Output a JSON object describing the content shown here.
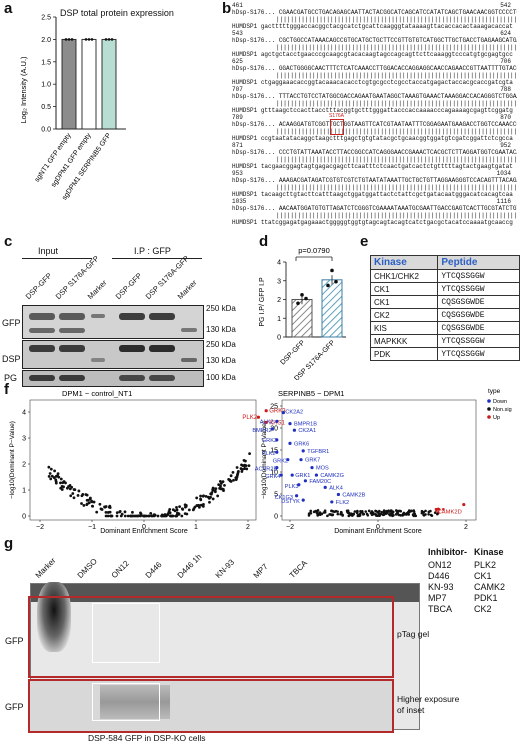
{
  "panels": {
    "a": "a",
    "b": "b",
    "c": "c",
    "d": "d",
    "e": "e",
    "f": "f",
    "g": "g"
  },
  "panel_a": {
    "title": "DSP total protein expression",
    "ylabel": "Log₂ Intensity (A.U.)",
    "yticks": [
      "0.0",
      "0.5",
      "1.0",
      "1.5",
      "2.0",
      "2.5"
    ],
    "categories": [
      "sgNT1 GFP empty",
      "sgDPM1 GFP empty",
      "sgDPM1 SERPINB5 GFP"
    ],
    "colors": [
      "#8c8c8c",
      "#ffffff",
      "#b8ddd2"
    ]
  },
  "panel_b": {
    "blocks": [
      {
        "start": "461",
        "end": "542",
        "q": "hDsp-S176...",
        "s": "HUMDSP1"
      },
      {
        "start": "543",
        "end": "624",
        "q": "hDsp-S176...",
        "s": "HUMDSP1"
      },
      {
        "start": "625",
        "end": "706",
        "q": "hDsp-S176...",
        "s": "HUMDSP1"
      },
      {
        "start": "707",
        "end": "788",
        "q": "hDsp-S176...",
        "s": "HUMDSP1"
      },
      {
        "start": "789",
        "end": "870",
        "q": "hDsp-S176...",
        "s": "HUMDSP1"
      },
      {
        "start": "871",
        "end": "952",
        "q": "hDsp-S176...",
        "s": "HUMDSP1"
      },
      {
        "start": "953",
        "end": "1034",
        "q": "hDsp-S176...",
        "s": "HUMDSP1"
      },
      {
        "start": "1035",
        "end": "1116",
        "q": "hDsp-S176...",
        "s": "HUMDSP1"
      }
    ],
    "mutation_label": "S176A"
  },
  "panel_c": {
    "header_input": "Input",
    "header_ip": "I.P : GFP",
    "lanes": [
      "DSP-GFP",
      "DSP S176A-GFP",
      "Marker",
      "DSP-GFP",
      "DSP S176A-GFP",
      "Marker"
    ],
    "rows": [
      "GFP",
      "DSP",
      "PG"
    ],
    "kda": [
      "250 kDa",
      "130 kDa",
      "250 kDa",
      "130 kDa",
      "100 kDa"
    ]
  },
  "panel_d": {
    "ylabel": "PG I.P/ GFP I.P",
    "pvalue": "p=0.0790",
    "yticks": [
      "0",
      "1",
      "2",
      "3",
      "4"
    ],
    "categories": [
      "DSP-GFP",
      "DSP S176A-GFP"
    ]
  },
  "panel_e": {
    "headers": [
      "Kinase",
      "Peptide"
    ],
    "rows": [
      [
        "CHK1/CHK2",
        "YTCQSSGGW"
      ],
      [
        "CK1",
        "YTCQSSGGW"
      ],
      [
        "CK1",
        "CQSGSGWDE"
      ],
      [
        "CK2",
        "CQSGSGWDE"
      ],
      [
        "KIS",
        "CQSGSGWDE"
      ],
      [
        "MAPKKK",
        "YTCQSSGGW"
      ],
      [
        "PDK",
        "YTCQSSGGW"
      ]
    ]
  },
  "panel_f": {
    "left_title": "DPM1 − control_NT1",
    "right_title": "SERPINB5 − DPM1",
    "ylabel": "−log10(Dominant P−Value)",
    "xlabel": "Dominant Enrichment Score",
    "left_xticks": [
      "−2",
      "−1",
      "0",
      "1",
      "2"
    ],
    "left_yticks": [
      "0",
      "1",
      "2",
      "3",
      "4"
    ],
    "right_xticks": [
      "−2",
      "0",
      "2"
    ],
    "right_yticks": [
      "0",
      "5",
      "10",
      "15",
      "20",
      "25"
    ],
    "left_labels": [
      "GRK3",
      "PLK2",
      "KHS1"
    ],
    "right_labels_down": [
      "CK2A2",
      "ALK2",
      "BMPR1B",
      "BMPR2",
      "CK2A1",
      "GRK3",
      "GRK6",
      "PLK2",
      "TGFBR1",
      "GRK2",
      "GRK7",
      "ACVR2B",
      "MOS",
      "GRK4",
      "GRK1",
      "CAMK2G",
      "FAM20C",
      "PLK3",
      "ALK4",
      "CK1G3",
      "CAMK2B",
      "DSTYK",
      "FLK2"
    ],
    "right_labels_up": [
      "CAMK2D"
    ],
    "legend_title": "type",
    "legend": [
      {
        "name": "Down",
        "color": "#1f2fbf"
      },
      {
        "name": "Non.sig",
        "color": "#111111"
      },
      {
        "name": "Up",
        "color": "#cc1a1a"
      }
    ]
  },
  "panel_g": {
    "lanes": [
      "Marker",
      "DMSO",
      "ON12",
      "D446",
      "D446 1h",
      "KN-93",
      "MP7",
      "TBCA"
    ],
    "row1_label": "GFP",
    "row2_label": "GFP",
    "ptag_label": "pTag gel",
    "exposure_label": "Higher exposure\nof inset",
    "footer": "DSP-584 GFP in DSP-KO cells",
    "inhibitor_header": "Inhibitor-",
    "kinase_header": "Kinase",
    "inhibitors": [
      [
        "ON12",
        "PLK2"
      ],
      [
        "D446",
        "CK1"
      ],
      [
        "KN-93",
        "CAMK2"
      ],
      [
        "MP7",
        "PDK1"
      ],
      [
        "TBCA",
        "CK2"
      ]
    ]
  }
}
